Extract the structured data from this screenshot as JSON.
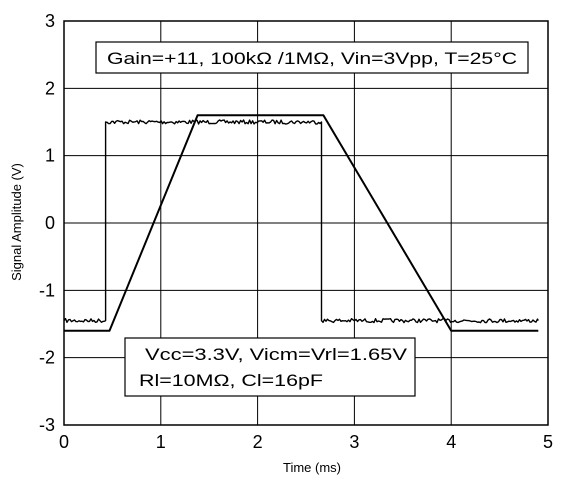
{
  "chart_data": {
    "type": "line",
    "title": "",
    "xlabel": "Time (ms)",
    "ylabel": "Signal Amplitude (V)",
    "xlim": [
      0,
      5
    ],
    "ylim": [
      -3,
      3
    ],
    "xticks": [
      0,
      1,
      2,
      3,
      4,
      5
    ],
    "yticks": [
      3,
      2,
      1,
      0,
      -1,
      -2,
      -3
    ],
    "grid": true,
    "legend": "none",
    "series": [
      {
        "color": "#000000",
        "noisy": true,
        "x": [
          0,
          0.43,
          0.43,
          2.66,
          2.66,
          4.9
        ],
        "y": [
          -1.45,
          -1.45,
          1.5,
          1.5,
          -1.45,
          -1.45
        ]
      },
      {
        "color": "#000000",
        "noisy": false,
        "x": [
          0,
          0.47,
          1.38,
          2.68,
          4.0,
          4.9
        ],
        "y": [
          -1.6,
          -1.6,
          1.6,
          1.6,
          -1.6,
          -1.6
        ]
      }
    ],
    "annotations": [
      {
        "id": "gain",
        "lines": [
          "Gain=+11, 100kΩ /1MΩ, Vin=3Vpp, T=25°C"
        ]
      },
      {
        "id": "supply",
        "lines": [
          "Vcc=3.3V, Vicm=Vrl=1.65V",
          "Rl=10MΩ, Cl=16pF"
        ]
      }
    ]
  }
}
